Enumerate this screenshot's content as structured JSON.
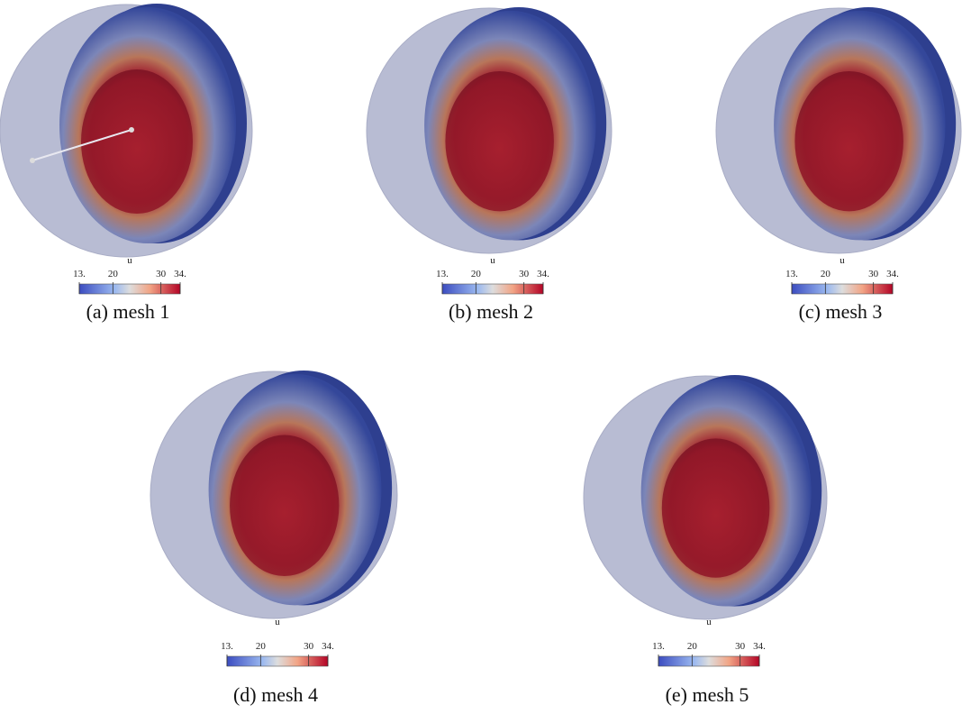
{
  "panels": [
    {
      "caption": "(a) mesh 1"
    },
    {
      "caption": "(b) mesh 2"
    },
    {
      "caption": "(c) mesh 3"
    },
    {
      "caption": "(d) mesh 4"
    },
    {
      "caption": "(e) mesh 5"
    }
  ],
  "colorbar": {
    "title": "u",
    "range": [
      13,
      34
    ],
    "ticks": [
      {
        "value": 13,
        "label": "13."
      },
      20,
      30,
      {
        "value": 34,
        "label": "34."
      }
    ]
  }
}
